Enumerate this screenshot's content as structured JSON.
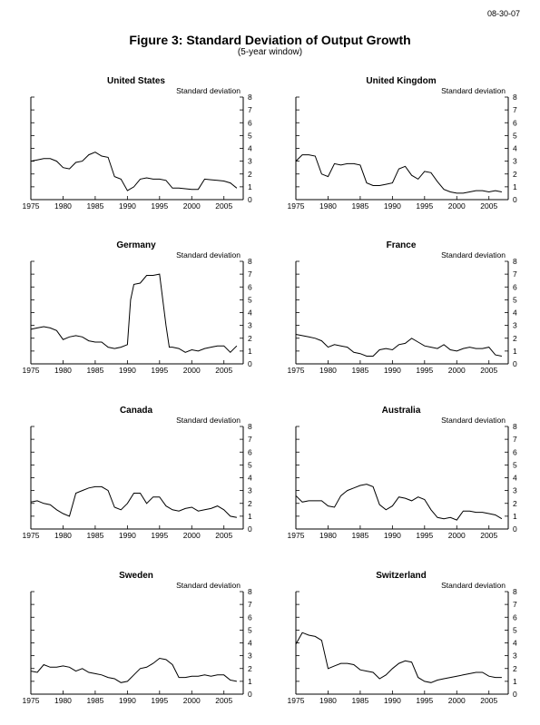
{
  "header": {
    "date": "08-30-07",
    "title": "Figure 3: Standard Deviation of Output Growth",
    "subtitle": "(5-year window)"
  },
  "colors": {
    "line": "#000000",
    "axis": "#000000",
    "background": "#ffffff"
  },
  "chart_data": [
    {
      "type": "line",
      "title": "United States",
      "ylabel": "Standard deviation",
      "xlim": [
        1975,
        2008
      ],
      "ylim": [
        0,
        8
      ],
      "x_ticks": [
        1975,
        1980,
        1985,
        1990,
        1995,
        2000,
        2005
      ],
      "y_ticks": [
        0,
        1,
        2,
        3,
        4,
        5,
        6,
        7,
        8
      ],
      "series": [
        {
          "x": [
            1975,
            1976,
            1977,
            1978,
            1979,
            1980,
            1981,
            1982,
            1983,
            1984,
            1985,
            1986,
            1987,
            1988,
            1989,
            1990,
            1991,
            1992,
            1993,
            1994,
            1995,
            1996,
            1997,
            1998,
            1999,
            2000,
            2001,
            2002,
            2003,
            2004,
            2005,
            2006,
            2007
          ],
          "y": [
            3.0,
            3.1,
            3.2,
            3.2,
            3.0,
            2.5,
            2.4,
            2.9,
            3.0,
            3.5,
            3.7,
            3.4,
            3.3,
            1.8,
            1.6,
            0.7,
            1.0,
            1.6,
            1.7,
            1.6,
            1.6,
            1.5,
            0.9,
            0.9,
            0.85,
            0.8,
            0.8,
            1.6,
            1.55,
            1.5,
            1.45,
            1.3,
            0.9
          ]
        }
      ]
    },
    {
      "type": "line",
      "title": "United Kingdom",
      "ylabel": "Standard deviation",
      "xlim": [
        1975,
        2008
      ],
      "ylim": [
        0,
        8
      ],
      "x_ticks": [
        1975,
        1980,
        1985,
        1990,
        1995,
        2000,
        2005
      ],
      "y_ticks": [
        0,
        1,
        2,
        3,
        4,
        5,
        6,
        7,
        8
      ],
      "series": [
        {
          "x": [
            1975,
            1976,
            1977,
            1978,
            1979,
            1980,
            1981,
            1982,
            1983,
            1984,
            1985,
            1986,
            1987,
            1988,
            1989,
            1990,
            1991,
            1992,
            1993,
            1994,
            1995,
            1996,
            1997,
            1998,
            1999,
            2000,
            2001,
            2002,
            2003,
            2004,
            2005,
            2006,
            2007
          ],
          "y": [
            3.0,
            3.5,
            3.5,
            3.4,
            2.0,
            1.8,
            2.8,
            2.7,
            2.8,
            2.8,
            2.7,
            1.3,
            1.1,
            1.1,
            1.2,
            1.3,
            2.4,
            2.6,
            1.9,
            1.6,
            2.2,
            2.1,
            1.4,
            0.8,
            0.6,
            0.5,
            0.5,
            0.6,
            0.7,
            0.7,
            0.6,
            0.7,
            0.6
          ]
        }
      ]
    },
    {
      "type": "line",
      "title": "Germany",
      "ylabel": "Standard deviation",
      "xlim": [
        1975,
        2008
      ],
      "ylim": [
        0,
        8
      ],
      "x_ticks": [
        1975,
        1980,
        1985,
        1990,
        1995,
        2000,
        2005
      ],
      "y_ticks": [
        0,
        1,
        2,
        3,
        4,
        5,
        6,
        7,
        8
      ],
      "series": [
        {
          "x": [
            1975,
            1976,
            1977,
            1978,
            1979,
            1980,
            1981,
            1982,
            1983,
            1984,
            1985,
            1986,
            1987,
            1988,
            1989,
            1990,
            1990.5,
            1991,
            1992,
            1993,
            1994,
            1995,
            1996,
            1996.5,
            1997,
            1998,
            1999,
            2000,
            2001,
            2002,
            2003,
            2004,
            2005,
            2006,
            2007
          ],
          "y": [
            2.7,
            2.8,
            2.9,
            2.8,
            2.6,
            1.9,
            2.1,
            2.2,
            2.1,
            1.8,
            1.7,
            1.7,
            1.3,
            1.2,
            1.3,
            1.5,
            5.0,
            6.2,
            6.3,
            6.9,
            6.9,
            7.0,
            3.0,
            1.3,
            1.3,
            1.2,
            0.9,
            1.1,
            1.0,
            1.2,
            1.3,
            1.4,
            1.4,
            0.9,
            1.4
          ]
        }
      ]
    },
    {
      "type": "line",
      "title": "France",
      "ylabel": "Standard deviation",
      "xlim": [
        1975,
        2008
      ],
      "ylim": [
        0,
        8
      ],
      "x_ticks": [
        1975,
        1980,
        1985,
        1990,
        1995,
        2000,
        2005
      ],
      "y_ticks": [
        0,
        1,
        2,
        3,
        4,
        5,
        6,
        7,
        8
      ],
      "series": [
        {
          "x": [
            1975,
            1976,
            1977,
            1978,
            1979,
            1980,
            1981,
            1982,
            1983,
            1984,
            1985,
            1986,
            1987,
            1988,
            1989,
            1990,
            1991,
            1992,
            1993,
            1994,
            1995,
            1996,
            1997,
            1998,
            1999,
            2000,
            2001,
            2002,
            2003,
            2004,
            2005,
            2006,
            2007
          ],
          "y": [
            2.3,
            2.2,
            2.1,
            2.0,
            1.8,
            1.3,
            1.5,
            1.4,
            1.3,
            0.9,
            0.8,
            0.6,
            0.6,
            1.1,
            1.2,
            1.1,
            1.5,
            1.6,
            2.0,
            1.7,
            1.4,
            1.3,
            1.2,
            1.5,
            1.1,
            1.0,
            1.2,
            1.3,
            1.2,
            1.2,
            1.3,
            0.7,
            0.6
          ]
        }
      ]
    },
    {
      "type": "line",
      "title": "Canada",
      "ylabel": "Standard deviation",
      "xlim": [
        1975,
        2008
      ],
      "ylim": [
        0,
        8
      ],
      "x_ticks": [
        1975,
        1980,
        1985,
        1990,
        1995,
        2000,
        2005
      ],
      "y_ticks": [
        0,
        1,
        2,
        3,
        4,
        5,
        6,
        7,
        8
      ],
      "series": [
        {
          "x": [
            1975,
            1976,
            1977,
            1978,
            1979,
            1980,
            1981,
            1982,
            1983,
            1984,
            1985,
            1986,
            1987,
            1988,
            1989,
            1990,
            1991,
            1992,
            1993,
            1994,
            1995,
            1996,
            1997,
            1998,
            1999,
            2000,
            2001,
            2002,
            2003,
            2004,
            2005,
            2006,
            2007
          ],
          "y": [
            2.1,
            2.2,
            2.0,
            1.9,
            1.5,
            1.2,
            1.0,
            2.8,
            3.0,
            3.2,
            3.3,
            3.3,
            3.0,
            1.7,
            1.5,
            2.0,
            2.8,
            2.8,
            2.0,
            2.5,
            2.5,
            1.8,
            1.5,
            1.4,
            1.6,
            1.7,
            1.4,
            1.5,
            1.6,
            1.8,
            1.5,
            1.0,
            0.9
          ]
        }
      ]
    },
    {
      "type": "line",
      "title": "Australia",
      "ylabel": "Standard deviation",
      "xlim": [
        1975,
        2008
      ],
      "ylim": [
        0,
        8
      ],
      "x_ticks": [
        1975,
        1980,
        1985,
        1990,
        1995,
        2000,
        2005
      ],
      "y_ticks": [
        0,
        1,
        2,
        3,
        4,
        5,
        6,
        7,
        8
      ],
      "series": [
        {
          "x": [
            1975,
            1976,
            1977,
            1978,
            1979,
            1980,
            1981,
            1982,
            1983,
            1984,
            1985,
            1986,
            1987,
            1988,
            1989,
            1990,
            1991,
            1992,
            1993,
            1994,
            1995,
            1996,
            1997,
            1998,
            1999,
            2000,
            2001,
            2002,
            2003,
            2004,
            2005,
            2006,
            2007
          ],
          "y": [
            2.6,
            2.1,
            2.2,
            2.2,
            2.2,
            1.8,
            1.7,
            2.6,
            3.0,
            3.2,
            3.4,
            3.5,
            3.3,
            1.9,
            1.5,
            1.8,
            2.5,
            2.4,
            2.2,
            2.5,
            2.3,
            1.5,
            0.9,
            0.8,
            0.9,
            0.7,
            1.4,
            1.4,
            1.3,
            1.3,
            1.2,
            1.1,
            0.8
          ]
        }
      ]
    },
    {
      "type": "line",
      "title": "Sweden",
      "ylabel": "Standard deviation",
      "xlim": [
        1975,
        2008
      ],
      "ylim": [
        0,
        8
      ],
      "x_ticks": [
        1975,
        1980,
        1985,
        1990,
        1995,
        2000,
        2005
      ],
      "y_ticks": [
        0,
        1,
        2,
        3,
        4,
        5,
        6,
        7,
        8
      ],
      "series": [
        {
          "x": [
            1975,
            1976,
            1977,
            1978,
            1979,
            1980,
            1981,
            1982,
            1983,
            1984,
            1985,
            1986,
            1987,
            1988,
            1989,
            1990,
            1991,
            1992,
            1993,
            1994,
            1995,
            1996,
            1997,
            1998,
            1999,
            2000,
            2001,
            2002,
            2003,
            2004,
            2005,
            2006,
            2007
          ],
          "y": [
            1.8,
            1.7,
            2.3,
            2.1,
            2.1,
            2.2,
            2.1,
            1.8,
            2.0,
            1.7,
            1.6,
            1.5,
            1.3,
            1.2,
            0.9,
            1.0,
            1.5,
            2.0,
            2.1,
            2.4,
            2.8,
            2.7,
            2.3,
            1.3,
            1.3,
            1.4,
            1.4,
            1.5,
            1.4,
            1.5,
            1.5,
            1.1,
            1.0
          ]
        }
      ]
    },
    {
      "type": "line",
      "title": "Switzerland",
      "ylabel": "Standard deviation",
      "xlim": [
        1975,
        2008
      ],
      "ylim": [
        0,
        8
      ],
      "x_ticks": [
        1975,
        1980,
        1985,
        1990,
        1995,
        2000,
        2005
      ],
      "y_ticks": [
        0,
        1,
        2,
        3,
        4,
        5,
        6,
        7,
        8
      ],
      "series": [
        {
          "x": [
            1975,
            1976,
            1977,
            1978,
            1979,
            1980,
            1981,
            1982,
            1983,
            1984,
            1985,
            1986,
            1987,
            1988,
            1989,
            1990,
            1991,
            1992,
            1993,
            1994,
            1995,
            1996,
            1997,
            1998,
            1999,
            2000,
            2001,
            2002,
            2003,
            2004,
            2005,
            2006,
            2007
          ],
          "y": [
            3.9,
            4.8,
            4.6,
            4.5,
            4.2,
            2.0,
            2.2,
            2.4,
            2.4,
            2.3,
            1.9,
            1.8,
            1.7,
            1.2,
            1.5,
            2.0,
            2.4,
            2.6,
            2.5,
            1.3,
            1.0,
            0.9,
            1.1,
            1.2,
            1.3,
            1.4,
            1.5,
            1.6,
            1.7,
            1.7,
            1.4,
            1.3,
            1.3
          ]
        }
      ]
    }
  ]
}
